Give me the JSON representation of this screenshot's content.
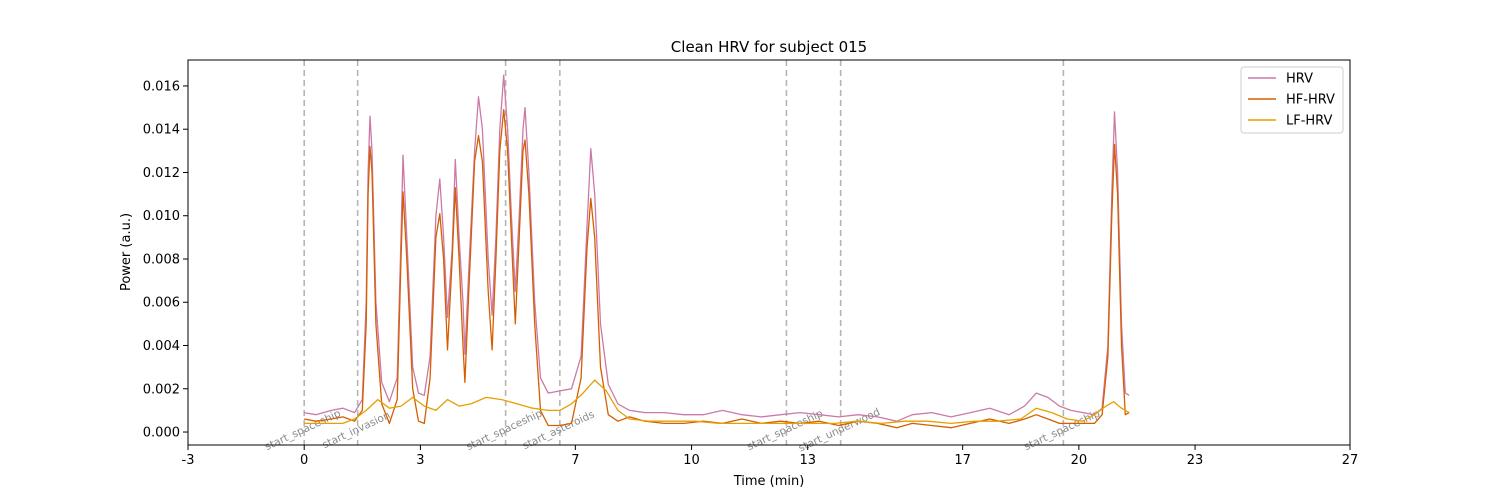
{
  "chart_data": {
    "type": "line",
    "title": "Clean HRV for subject 015",
    "xlabel": "Time (min)",
    "ylabel": "Power (a.u.)",
    "xlim": [
      -3,
      27
    ],
    "ylim": [
      -0.0006,
      0.0172
    ],
    "xticks": [
      -3,
      0,
      3,
      7,
      10,
      13,
      17,
      20,
      23,
      27
    ],
    "xtick_labels": [
      "-3",
      "0",
      "3",
      "7",
      "10",
      "13",
      "17",
      "20",
      "23",
      "27"
    ],
    "yticks": [
      0.0,
      0.002,
      0.004,
      0.006,
      0.008,
      0.01,
      0.012,
      0.014,
      0.016
    ],
    "ytick_labels": [
      "0.000",
      "0.002",
      "0.004",
      "0.006",
      "0.008",
      "0.010",
      "0.012",
      "0.014",
      "0.016"
    ],
    "grid": false,
    "legend_position": "top-right",
    "events": [
      {
        "x": 0.0,
        "label": "start_spaceship"
      },
      {
        "x": 1.38,
        "label": "start_invasion"
      },
      {
        "x": 5.2,
        "label": "start_spaceship"
      },
      {
        "x": 6.6,
        "label": "start_asteroids"
      },
      {
        "x": 12.45,
        "label": "start_spaceship"
      },
      {
        "x": 13.85,
        "label": "start_underwood"
      },
      {
        "x": 19.6,
        "label": "start_spaceship"
      }
    ],
    "series": [
      {
        "name": "HRV",
        "color": "#cc79a7",
        "points": [
          [
            0.0,
            0.0009
          ],
          [
            0.3,
            0.0008
          ],
          [
            0.7,
            0.001
          ],
          [
            1.0,
            0.0011
          ],
          [
            1.3,
            0.0009
          ],
          [
            1.5,
            0.0015
          ],
          [
            1.6,
            0.006
          ],
          [
            1.65,
            0.012
          ],
          [
            1.7,
            0.0146
          ],
          [
            1.75,
            0.013
          ],
          [
            1.85,
            0.006
          ],
          [
            2.0,
            0.0023
          ],
          [
            2.2,
            0.0014
          ],
          [
            2.4,
            0.0025
          ],
          [
            2.5,
            0.009
          ],
          [
            2.55,
            0.0128
          ],
          [
            2.65,
            0.009
          ],
          [
            2.8,
            0.003
          ],
          [
            2.95,
            0.0018
          ],
          [
            3.1,
            0.0017
          ],
          [
            3.25,
            0.0035
          ],
          [
            3.4,
            0.01
          ],
          [
            3.5,
            0.0117
          ],
          [
            3.6,
            0.009
          ],
          [
            3.7,
            0.0053
          ],
          [
            3.82,
            0.0085
          ],
          [
            3.9,
            0.0126
          ],
          [
            4.0,
            0.009
          ],
          [
            4.1,
            0.006
          ],
          [
            4.15,
            0.0036
          ],
          [
            4.25,
            0.0075
          ],
          [
            4.4,
            0.013
          ],
          [
            4.5,
            0.0155
          ],
          [
            4.6,
            0.014
          ],
          [
            4.75,
            0.008
          ],
          [
            4.85,
            0.0054
          ],
          [
            4.95,
            0.009
          ],
          [
            5.05,
            0.014
          ],
          [
            5.15,
            0.0165
          ],
          [
            5.25,
            0.014
          ],
          [
            5.35,
            0.01
          ],
          [
            5.45,
            0.0065
          ],
          [
            5.55,
            0.01
          ],
          [
            5.65,
            0.014
          ],
          [
            5.7,
            0.015
          ],
          [
            5.8,
            0.012
          ],
          [
            5.95,
            0.006
          ],
          [
            6.1,
            0.0025
          ],
          [
            6.3,
            0.0018
          ],
          [
            6.6,
            0.0019
          ],
          [
            6.9,
            0.002
          ],
          [
            7.15,
            0.0035
          ],
          [
            7.3,
            0.0095
          ],
          [
            7.4,
            0.0131
          ],
          [
            7.5,
            0.011
          ],
          [
            7.65,
            0.005
          ],
          [
            7.85,
            0.0022
          ],
          [
            8.1,
            0.0013
          ],
          [
            8.4,
            0.001
          ],
          [
            8.8,
            0.0009
          ],
          [
            9.3,
            0.0009
          ],
          [
            9.8,
            0.0008
          ],
          [
            10.3,
            0.0008
          ],
          [
            10.8,
            0.001
          ],
          [
            11.3,
            0.0008
          ],
          [
            11.8,
            0.0007
          ],
          [
            12.3,
            0.0008
          ],
          [
            12.8,
            0.0009
          ],
          [
            13.3,
            0.0008
          ],
          [
            13.8,
            0.0007
          ],
          [
            14.3,
            0.0008
          ],
          [
            14.8,
            0.0007
          ],
          [
            15.3,
            0.0005
          ],
          [
            15.7,
            0.0008
          ],
          [
            16.2,
            0.0009
          ],
          [
            16.7,
            0.0007
          ],
          [
            17.2,
            0.0009
          ],
          [
            17.7,
            0.0011
          ],
          [
            18.2,
            0.0008
          ],
          [
            18.6,
            0.0012
          ],
          [
            18.9,
            0.0018
          ],
          [
            19.2,
            0.0016
          ],
          [
            19.5,
            0.0012
          ],
          [
            19.8,
            0.001
          ],
          [
            20.1,
            0.0009
          ],
          [
            20.4,
            0.0008
          ],
          [
            20.6,
            0.0011
          ],
          [
            20.75,
            0.004
          ],
          [
            20.85,
            0.011
          ],
          [
            20.92,
            0.0148
          ],
          [
            21.0,
            0.012
          ],
          [
            21.1,
            0.005
          ],
          [
            21.2,
            0.0018
          ],
          [
            21.3,
            0.0017
          ]
        ]
      },
      {
        "name": "HF-HRV",
        "color": "#d55e00",
        "points": [
          [
            0.0,
            0.0006
          ],
          [
            0.3,
            0.0005
          ],
          [
            0.7,
            0.0006
          ],
          [
            1.0,
            0.0007
          ],
          [
            1.3,
            0.0005
          ],
          [
            1.5,
            0.001
          ],
          [
            1.6,
            0.005
          ],
          [
            1.65,
            0.011
          ],
          [
            1.7,
            0.0132
          ],
          [
            1.75,
            0.012
          ],
          [
            1.85,
            0.005
          ],
          [
            2.0,
            0.0013
          ],
          [
            2.2,
            0.0004
          ],
          [
            2.4,
            0.0015
          ],
          [
            2.5,
            0.008
          ],
          [
            2.55,
            0.0111
          ],
          [
            2.65,
            0.008
          ],
          [
            2.8,
            0.002
          ],
          [
            2.95,
            0.0005
          ],
          [
            3.1,
            0.0004
          ],
          [
            3.25,
            0.0025
          ],
          [
            3.4,
            0.009
          ],
          [
            3.5,
            0.0101
          ],
          [
            3.6,
            0.008
          ],
          [
            3.7,
            0.0038
          ],
          [
            3.82,
            0.008
          ],
          [
            3.9,
            0.0113
          ],
          [
            4.0,
            0.008
          ],
          [
            4.1,
            0.004
          ],
          [
            4.15,
            0.0023
          ],
          [
            4.25,
            0.0065
          ],
          [
            4.4,
            0.0125
          ],
          [
            4.5,
            0.0137
          ],
          [
            4.6,
            0.0125
          ],
          [
            4.75,
            0.0065
          ],
          [
            4.85,
            0.0038
          ],
          [
            4.95,
            0.008
          ],
          [
            5.05,
            0.013
          ],
          [
            5.15,
            0.0149
          ],
          [
            5.25,
            0.013
          ],
          [
            5.35,
            0.009
          ],
          [
            5.45,
            0.005
          ],
          [
            5.55,
            0.009
          ],
          [
            5.65,
            0.013
          ],
          [
            5.7,
            0.0135
          ],
          [
            5.8,
            0.011
          ],
          [
            5.95,
            0.005
          ],
          [
            6.1,
            0.001
          ],
          [
            6.3,
            0.0003
          ],
          [
            6.6,
            0.0003
          ],
          [
            6.9,
            0.0004
          ],
          [
            7.15,
            0.0025
          ],
          [
            7.3,
            0.0085
          ],
          [
            7.4,
            0.0108
          ],
          [
            7.5,
            0.009
          ],
          [
            7.65,
            0.003
          ],
          [
            7.85,
            0.0008
          ],
          [
            8.1,
            0.0005
          ],
          [
            8.4,
            0.0007
          ],
          [
            8.8,
            0.0005
          ],
          [
            9.3,
            0.0004
          ],
          [
            9.8,
            0.0004
          ],
          [
            10.3,
            0.0005
          ],
          [
            10.8,
            0.0004
          ],
          [
            11.3,
            0.0006
          ],
          [
            11.8,
            0.0004
          ],
          [
            12.3,
            0.0005
          ],
          [
            12.8,
            0.0004
          ],
          [
            13.3,
            0.0005
          ],
          [
            13.8,
            0.0003
          ],
          [
            14.3,
            0.0005
          ],
          [
            14.8,
            0.0004
          ],
          [
            15.3,
            0.0002
          ],
          [
            15.7,
            0.0004
          ],
          [
            16.2,
            0.0003
          ],
          [
            16.7,
            0.0002
          ],
          [
            17.2,
            0.0004
          ],
          [
            17.7,
            0.0006
          ],
          [
            18.2,
            0.0004
          ],
          [
            18.6,
            0.0006
          ],
          [
            18.9,
            0.0008
          ],
          [
            19.2,
            0.0006
          ],
          [
            19.5,
            0.0004
          ],
          [
            19.8,
            0.0004
          ],
          [
            20.1,
            0.0004
          ],
          [
            20.4,
            0.0004
          ],
          [
            20.6,
            0.0008
          ],
          [
            20.75,
            0.0035
          ],
          [
            20.85,
            0.01
          ],
          [
            20.92,
            0.0133
          ],
          [
            21.0,
            0.011
          ],
          [
            21.1,
            0.004
          ],
          [
            21.2,
            0.0008
          ],
          [
            21.3,
            0.0009
          ]
        ]
      },
      {
        "name": "LF-HRV",
        "color": "#e69f00",
        "points": [
          [
            0.0,
            0.0004
          ],
          [
            0.5,
            0.0004
          ],
          [
            1.0,
            0.0004
          ],
          [
            1.3,
            0.0006
          ],
          [
            1.6,
            0.001
          ],
          [
            1.9,
            0.0015
          ],
          [
            2.2,
            0.0011
          ],
          [
            2.5,
            0.0012
          ],
          [
            2.8,
            0.0016
          ],
          [
            3.1,
            0.0012
          ],
          [
            3.4,
            0.001
          ],
          [
            3.7,
            0.0015
          ],
          [
            4.0,
            0.0012
          ],
          [
            4.3,
            0.0013
          ],
          [
            4.7,
            0.0016
          ],
          [
            5.1,
            0.0015
          ],
          [
            5.5,
            0.0013
          ],
          [
            5.9,
            0.0011
          ],
          [
            6.3,
            0.001
          ],
          [
            6.6,
            0.001
          ],
          [
            6.9,
            0.0013
          ],
          [
            7.2,
            0.0018
          ],
          [
            7.5,
            0.0024
          ],
          [
            7.8,
            0.0019
          ],
          [
            8.1,
            0.001
          ],
          [
            8.4,
            0.0006
          ],
          [
            8.9,
            0.0005
          ],
          [
            9.5,
            0.0005
          ],
          [
            10.1,
            0.0005
          ],
          [
            10.7,
            0.0004
          ],
          [
            11.3,
            0.0004
          ],
          [
            11.9,
            0.0004
          ],
          [
            12.5,
            0.0004
          ],
          [
            13.1,
            0.0004
          ],
          [
            13.7,
            0.0004
          ],
          [
            14.3,
            0.0005
          ],
          [
            14.9,
            0.0004
          ],
          [
            15.5,
            0.0005
          ],
          [
            16.1,
            0.0005
          ],
          [
            16.7,
            0.0004
          ],
          [
            17.3,
            0.0005
          ],
          [
            17.9,
            0.0005
          ],
          [
            18.5,
            0.0006
          ],
          [
            18.9,
            0.0011
          ],
          [
            19.3,
            0.0009
          ],
          [
            19.7,
            0.0006
          ],
          [
            20.1,
            0.0005
          ],
          [
            20.4,
            0.0008
          ],
          [
            20.7,
            0.0012
          ],
          [
            20.9,
            0.0014
          ],
          [
            21.1,
            0.0011
          ],
          [
            21.3,
            0.0009
          ]
        ]
      }
    ]
  }
}
